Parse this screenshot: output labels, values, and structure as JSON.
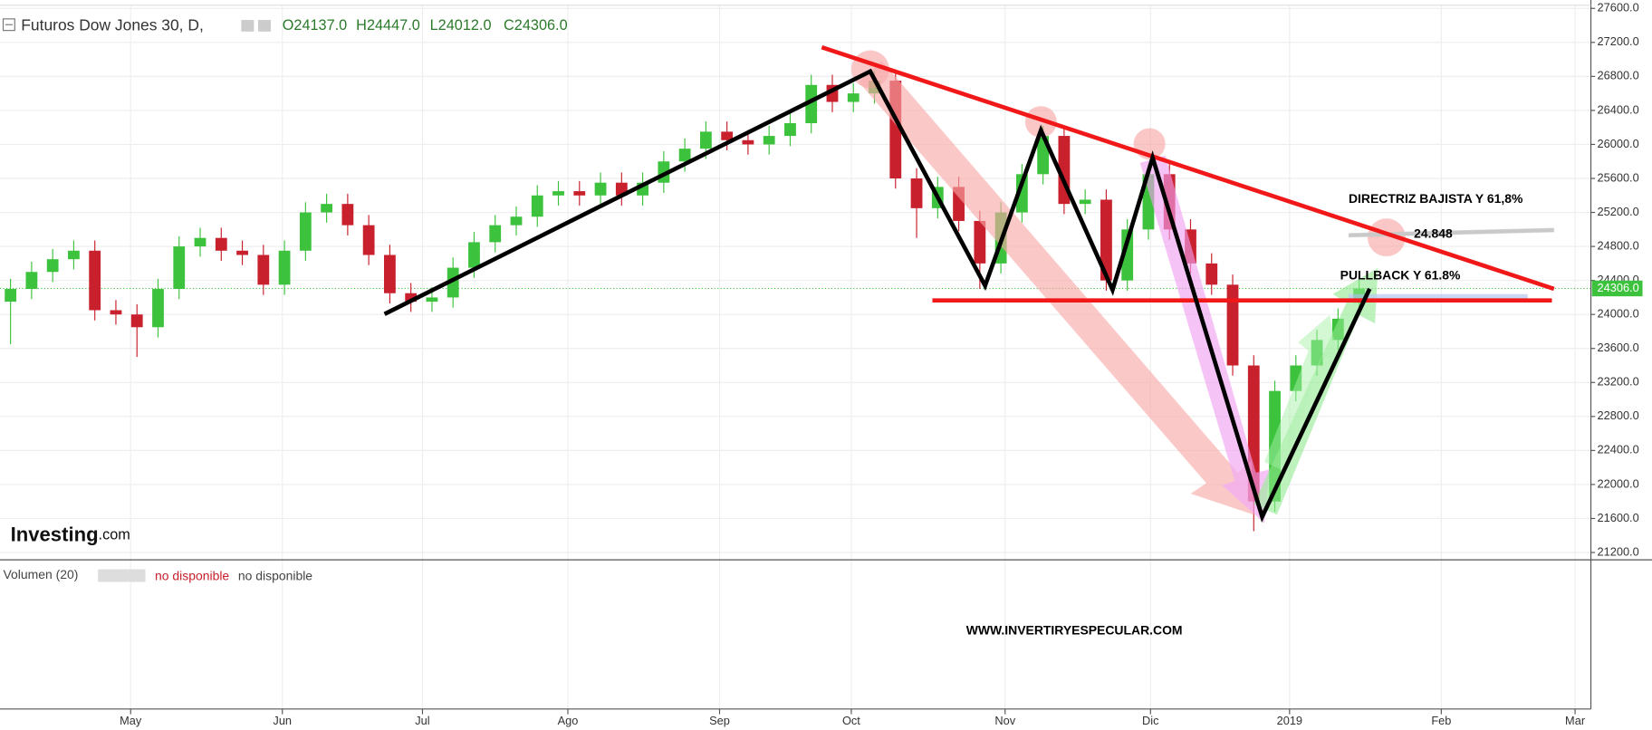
{
  "chart_data": {
    "type": "candlestick",
    "title": "Futuros Dow Jones 30, D,",
    "ohlc_header": [
      {
        "key": "O",
        "value": "24137.0"
      },
      {
        "key": "H",
        "value": "24447.0"
      },
      {
        "key": "L",
        "value": "24012.0"
      },
      {
        "key": "C",
        "value": "24306.0"
      }
    ],
    "up_color": "#3cc23c",
    "down_color": "#c8202c",
    "candles": {
      "open": [
        24150,
        24300,
        24500,
        24650,
        24750,
        24050,
        24000,
        23850,
        24300,
        24800,
        24900,
        24750,
        24700,
        24350,
        24750,
        25200,
        25300,
        25050,
        24700,
        24250,
        24150,
        24200,
        24550,
        24850,
        25050,
        25150,
        25400,
        25450,
        25400,
        25550,
        25400,
        25550,
        25800,
        25950,
        26150,
        26050,
        26000,
        26100,
        26250,
        26700,
        26500,
        26600,
        26750,
        25600,
        25250,
        25500,
        25100,
        24600,
        25200,
        25650,
        26100,
        25300,
        25350,
        24400,
        25000,
        25650,
        25000,
        24600,
        24350,
        23400,
        21800,
        23100,
        23400,
        23700,
        24137
      ],
      "high": [
        24420,
        24620,
        24770,
        24870,
        24870,
        24170,
        24120,
        24420,
        24920,
        25020,
        25020,
        24870,
        24820,
        24870,
        25320,
        25420,
        25420,
        25170,
        24820,
        24370,
        24320,
        24670,
        24970,
        25170,
        25270,
        25520,
        25570,
        25570,
        25670,
        25670,
        25670,
        25920,
        26070,
        26270,
        26270,
        26170,
        26220,
        26370,
        26820,
        26820,
        26720,
        26870,
        26870,
        25720,
        25620,
        25620,
        25220,
        25320,
        25770,
        26220,
        26220,
        25470,
        25470,
        25120,
        25770,
        25770,
        25120,
        24720,
        24470,
        23520,
        23220,
        23520,
        23820,
        24070,
        24447
      ],
      "low": [
        23650,
        24180,
        24380,
        24530,
        23930,
        23880,
        23500,
        23730,
        24180,
        24680,
        24630,
        24580,
        24230,
        24230,
        24630,
        25080,
        24930,
        24580,
        24130,
        24030,
        24030,
        24080,
        24430,
        24730,
        24930,
        25030,
        25280,
        25280,
        25280,
        25280,
        25280,
        25430,
        25680,
        25830,
        25930,
        25880,
        25880,
        25980,
        26130,
        26380,
        26380,
        26480,
        25480,
        24900,
        25130,
        24980,
        24300,
        24480,
        25080,
        25530,
        25180,
        25180,
        24280,
        24280,
        24880,
        24880,
        24480,
        24230,
        23280,
        21450,
        21680,
        22980,
        23280,
        23580,
        24012
      ],
      "close": [
        24300,
        24500,
        24650,
        24750,
        24050,
        24000,
        23850,
        24300,
        24800,
        24900,
        24750,
        24700,
        24350,
        24750,
        25200,
        25300,
        25050,
        24700,
        24250,
        24150,
        24200,
        24550,
        24850,
        25050,
        25150,
        25400,
        25450,
        25400,
        25550,
        25400,
        25550,
        25800,
        25950,
        26150,
        26050,
        26000,
        26100,
        26250,
        26700,
        26500,
        26600,
        26750,
        25600,
        25250,
        25500,
        25100,
        24600,
        25200,
        25650,
        26100,
        25300,
        25350,
        24400,
        25000,
        25650,
        25000,
        24600,
        24350,
        23400,
        21800,
        23100,
        23400,
        23700,
        23950,
        24306
      ]
    },
    "xlim": [
      -0.5,
      75
    ],
    "xticks": [
      {
        "value": 5.7,
        "label": "May"
      },
      {
        "value": 12.9,
        "label": "Jun"
      },
      {
        "value": 19.55,
        "label": "Jul"
      },
      {
        "value": 26.45,
        "label": "Ago"
      },
      {
        "value": 33.65,
        "label": "Sep"
      },
      {
        "value": 39.9,
        "label": "Oct"
      },
      {
        "value": 47.2,
        "label": "Nov"
      },
      {
        "value": 54.1,
        "label": "Dic"
      },
      {
        "value": 60.7,
        "label": "2019"
      },
      {
        "value": 67.9,
        "label": "Feb"
      },
      {
        "value": 74.25,
        "label": "Mar"
      }
    ],
    "ylim": [
      21040,
      27700
    ],
    "yticks": [
      {
        "value": 21200,
        "label": "21200.0"
      },
      {
        "value": 21600,
        "label": "21600.0"
      },
      {
        "value": 22000,
        "label": "22000.0"
      },
      {
        "value": 22400,
        "label": "22400.0"
      },
      {
        "value": 22800,
        "label": "22800.0"
      },
      {
        "value": 23200,
        "label": "23200.0"
      },
      {
        "value": 23600,
        "label": "23600.0"
      },
      {
        "value": 24000,
        "label": "24000.0"
      },
      {
        "value": 24400,
        "label": "24400.0"
      },
      {
        "value": 24800,
        "label": "24800.0"
      },
      {
        "value": 25200,
        "label": "25200.0"
      },
      {
        "value": 25600,
        "label": "25600.0"
      },
      {
        "value": 26000,
        "label": "26000.0"
      },
      {
        "value": 26400,
        "label": "26400.0"
      },
      {
        "value": 26800,
        "label": "26800.0"
      },
      {
        "value": 27200,
        "label": "27200.0"
      },
      {
        "value": 27600,
        "label": "27600.0"
      }
    ],
    "last_price": {
      "value": 24306,
      "label": "24306.0"
    },
    "grid": true,
    "annotations": {
      "directriz": "DIRECTRIZ BAJISTA Y 61,8%",
      "level": "24.848",
      "pullback": "PULLBACK Y 61.8%",
      "website": "WWW.INVERTIRYESPECULAR.COM"
    },
    "logo": {
      "brand": "Investing",
      "suffix": ".com"
    },
    "volume_pane": {
      "title": "Volumen (20)",
      "status_1": "no disponible",
      "status_2": "no disponible"
    }
  }
}
